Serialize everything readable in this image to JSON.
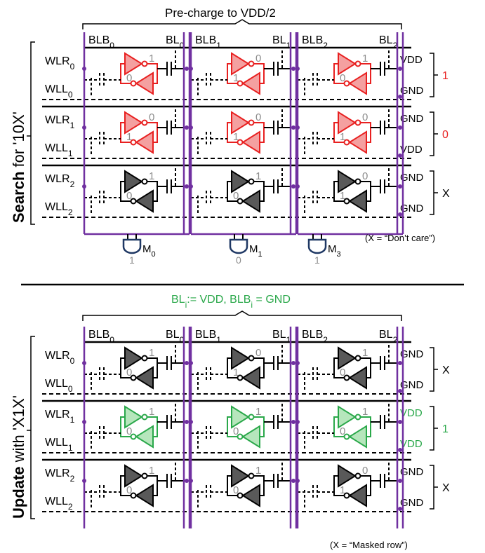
{
  "colors": {
    "bitline": "#7030a0",
    "red": "#e82020",
    "red_fill": "#f4a0a0",
    "green": "#2aa84a",
    "green_fill": "#b6e6bc",
    "gray_fill": "#595959",
    "gray_text": "#8c8c8c",
    "wire": "#000000",
    "match_gate": "#1f3864"
  },
  "search": {
    "top_label": "Pre-charge to VDD/2",
    "side_label_bold": "Search",
    "side_label_rest": " for '10X'",
    "columns": [
      {
        "blb": "BLB",
        "bl": "BL",
        "sub": "0"
      },
      {
        "blb": "BLB",
        "bl": "BL",
        "sub": "1"
      },
      {
        "blb": "BLB",
        "bl": "BL",
        "sub": "2"
      }
    ],
    "rows": [
      {
        "wlr": "WLR",
        "wll": "WLL",
        "sub": "0",
        "style": "red",
        "right_top": "VDD",
        "right_bottom": "GND",
        "brace_value": "1",
        "cells": [
          {
            "a": "1",
            "b": "0"
          },
          {
            "a": "0",
            "b": "1"
          },
          {
            "a": "1",
            "b": "0"
          }
        ]
      },
      {
        "wlr": "WLR",
        "wll": "WLL",
        "sub": "1",
        "style": "red",
        "right_top": "GND",
        "right_bottom": "VDD",
        "brace_value": "0",
        "cells": [
          {
            "a": "0",
            "b": "1"
          },
          {
            "a": "0",
            "b": "1"
          },
          {
            "a": "0",
            "b": "1"
          }
        ]
      },
      {
        "wlr": "WLR",
        "wll": "WLL",
        "sub": "2",
        "style": "gray",
        "right_top": "GND",
        "right_bottom": "GND",
        "brace_value": "X",
        "cells": [
          {
            "a": "1",
            "b": "0"
          },
          {
            "a": "1",
            "b": "0"
          },
          {
            "a": "0",
            "b": "1"
          }
        ]
      }
    ],
    "match": [
      {
        "label": "M",
        "sub": "0",
        "value": "1"
      },
      {
        "label": "M",
        "sub": "1",
        "value": "0"
      },
      {
        "label": "M",
        "sub": "3",
        "value": "1"
      }
    ],
    "note": "(X = “Don’t care”)"
  },
  "update": {
    "top_label_parts": [
      "BL",
      "i",
      ":= VDD, BLB",
      "i",
      " = GND"
    ],
    "side_label_bold": "Update",
    "side_label_rest": " with 'X1X'",
    "columns": [
      {
        "blb": "BLB",
        "bl": "BL",
        "sub": "0"
      },
      {
        "blb": "BLB",
        "bl": "BL",
        "sub": "1"
      },
      {
        "blb": "BLB",
        "bl": "BL",
        "sub": "2"
      }
    ],
    "rows": [
      {
        "wlr": "WLR",
        "wll": "WLL",
        "sub": "0",
        "style": "gray",
        "right_top": "GND",
        "right_bottom": "GND",
        "brace_value": "X",
        "cells": [
          {
            "a": "1",
            "b": "0"
          },
          {
            "a": "0",
            "b": "1"
          },
          {
            "a": "1",
            "b": "0"
          }
        ]
      },
      {
        "wlr": "WLR",
        "wll": "WLL",
        "sub": "1",
        "style": "green",
        "right_top": "VDD",
        "right_bottom": "VDD",
        "brace_value": "1",
        "cells": [
          {
            "a": "1",
            "b": "0"
          },
          {
            "a": "1",
            "b": "0"
          },
          {
            "a": "1",
            "b": "0"
          }
        ]
      },
      {
        "wlr": "WLR",
        "wll": "WLL",
        "sub": "2",
        "style": "gray",
        "right_top": "GND",
        "right_bottom": "GND",
        "brace_value": "X",
        "cells": [
          {
            "a": "1",
            "b": "0"
          },
          {
            "a": "1",
            "b": "0"
          },
          {
            "a": "0",
            "b": "1"
          }
        ]
      }
    ],
    "note": "(X = “Masked row”)"
  }
}
